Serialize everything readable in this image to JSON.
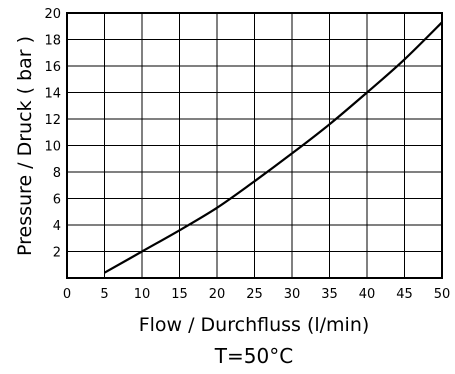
{
  "chart_data": {
    "type": "line",
    "title": "",
    "xlabel": "Flow / Durchfluss (l/min)",
    "ylabel": "Pressure / Druck ( bar )",
    "annotation": "T=50°C",
    "xlim": [
      0,
      50
    ],
    "ylim": [
      0,
      20
    ],
    "x_ticks": [
      "0",
      "5",
      "10",
      "15",
      "20",
      "25",
      "30",
      "35",
      "40",
      "45",
      "50"
    ],
    "y_ticks": [
      "2",
      "4",
      "6",
      "8",
      "10",
      "12",
      "14",
      "16",
      "18",
      "20"
    ],
    "grid": true,
    "series": [
      {
        "x": [
          5,
          10,
          15,
          20,
          25,
          30,
          35,
          40,
          45,
          50
        ],
        "y": [
          0.4,
          2.0,
          3.6,
          5.3,
          7.3,
          9.4,
          11.6,
          14.0,
          16.5,
          19.3
        ]
      }
    ]
  }
}
